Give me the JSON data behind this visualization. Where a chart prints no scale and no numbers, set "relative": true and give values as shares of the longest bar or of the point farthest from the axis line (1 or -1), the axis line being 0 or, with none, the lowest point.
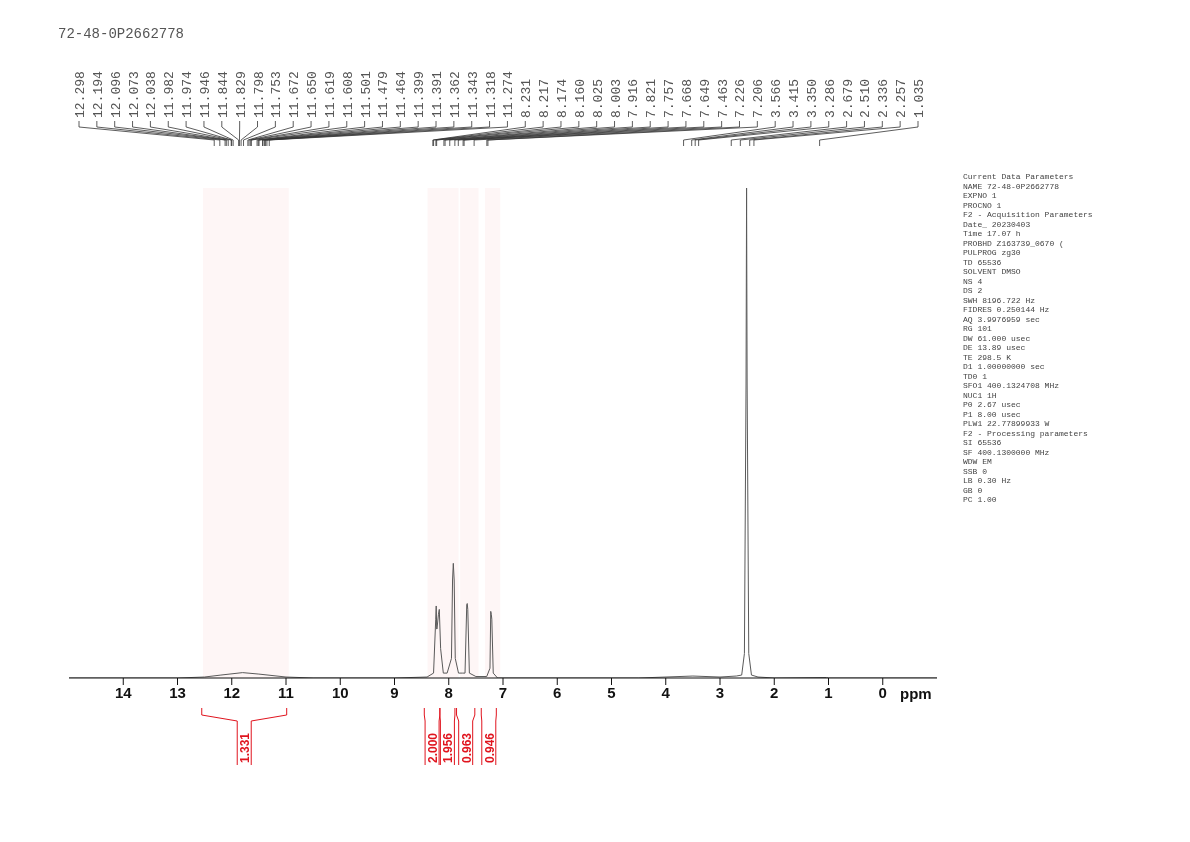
{
  "chart_data": {
    "type": "line",
    "title": "72-48-0P2662778",
    "xlabel": "ppm",
    "relative": true,
    "xlim": [
      15,
      -1
    ],
    "xticks": [
      14,
      13,
      12,
      11,
      10,
      9,
      8,
      7,
      6,
      5,
      4,
      3,
      2,
      1,
      0
    ],
    "series": [
      {
        "color": "#5a5a5a",
        "x": [
          15,
          13,
          12.5,
          12.2,
          11.8,
          11.5,
          11.0,
          10.5,
          9,
          8.4,
          8.28,
          8.24,
          8.231,
          8.222,
          8.217,
          8.19,
          8.174,
          8.15,
          8.1,
          8.03,
          7.95,
          7.93,
          7.916,
          7.9,
          7.88,
          7.82,
          7.75,
          7.7,
          7.668,
          7.659,
          7.649,
          7.62,
          7.5,
          7.3,
          7.24,
          7.226,
          7.216,
          7.206,
          7.18,
          7.1,
          6,
          4.5,
          3.5,
          3.0,
          2.7,
          2.6,
          2.55,
          2.52,
          2.51,
          2.5,
          2.47,
          2.42,
          2.3,
          2,
          1.035,
          1,
          -1
        ],
        "values": [
          0,
          0,
          0.002,
          0.006,
          0.011,
          0.008,
          0.002,
          0,
          0,
          0.002,
          0.01,
          0.12,
          0.147,
          0.1,
          0.1,
          0.13,
          0.14,
          0.06,
          0.01,
          0.01,
          0.04,
          0.2,
          0.234,
          0.2,
          0.04,
          0.01,
          0.01,
          0.01,
          0.15,
          0.152,
          0.14,
          0.01,
          0.003,
          0.003,
          0.02,
          0.136,
          0.13,
          0.12,
          0.01,
          0,
          0,
          0,
          0.004,
          0.002,
          0.004,
          0.006,
          0.05,
          0.6,
          1,
          0.6,
          0.05,
          0.006,
          0.002,
          0,
          0.001,
          0,
          0
        ]
      }
    ],
    "bands": [
      {
        "axis": "x",
        "from": 12.53,
        "to": 10.95,
        "label": "1.331",
        "color": "#e0141e"
      },
      {
        "axis": "x",
        "from": 8.39,
        "to": 8.1,
        "label": "2.000",
        "color": "#e0141e"
      },
      {
        "axis": "x",
        "from": 8.1,
        "to": 7.82,
        "label": "1.956",
        "color": "#e0141e"
      },
      {
        "axis": "x",
        "from": 7.79,
        "to": 7.45,
        "label": "0.963",
        "color": "#e0141e"
      },
      {
        "axis": "x",
        "from": 7.33,
        "to": 7.05,
        "label": "0.946",
        "color": "#e0141e"
      }
    ],
    "annotations": [
      "12.298",
      "12.194",
      "12.096",
      "12.073",
      "12.038",
      "11.982",
      "11.974",
      "11.946",
      "11.844",
      "11.829",
      "11.798",
      "11.753",
      "11.672",
      "11.650",
      "11.619",
      "11.608",
      "11.501",
      "11.479",
      "11.464",
      "11.399",
      "11.391",
      "11.362",
      "11.343",
      "11.318",
      "11.274",
      "8.231",
      "8.217",
      "8.174",
      "8.160",
      "8.025",
      "8.003",
      "7.916",
      "7.821",
      "7.757",
      "7.668",
      "7.649",
      "7.463",
      "7.226",
      "7.206",
      "3.566",
      "3.415",
      "3.350",
      "3.286",
      "2.679",
      "2.510",
      "2.336",
      "2.257",
      "1.035",
      "Current Data Parameters",
      "NAME 72-48-0P2662778",
      "EXPNO 1",
      "PROCNO 1",
      "F2 - Acquisition Parameters",
      "Date_ 20230403",
      "Time 17.07 h",
      "PROBHD Z163739_0670 (",
      "PULPROG zg30",
      "TD 65536",
      "SOLVENT DMSO",
      "NS 4",
      "DS 2",
      "SWH 8196.722 Hz",
      "FIDRES 0.250144 Hz",
      "AQ 3.9976959 sec",
      "RG 101",
      "DW 61.000 usec",
      "DE 13.89 usec",
      "TE 298.5 K",
      "D1 1.00000000 sec",
      "TD0 1",
      "SFO1 400.1324708 MHz",
      "NUC1 1H",
      "P0 2.67 usec",
      "P1 8.00 usec",
      "PLW1 22.77899933 W",
      "F2 - Processing parameters",
      "SI 65536",
      "SF 400.1300000 MHz",
      "WDW EM",
      "SSB 0",
      "LB 0.30 Hz",
      "GB 0",
      "PC 1.00"
    ]
  }
}
